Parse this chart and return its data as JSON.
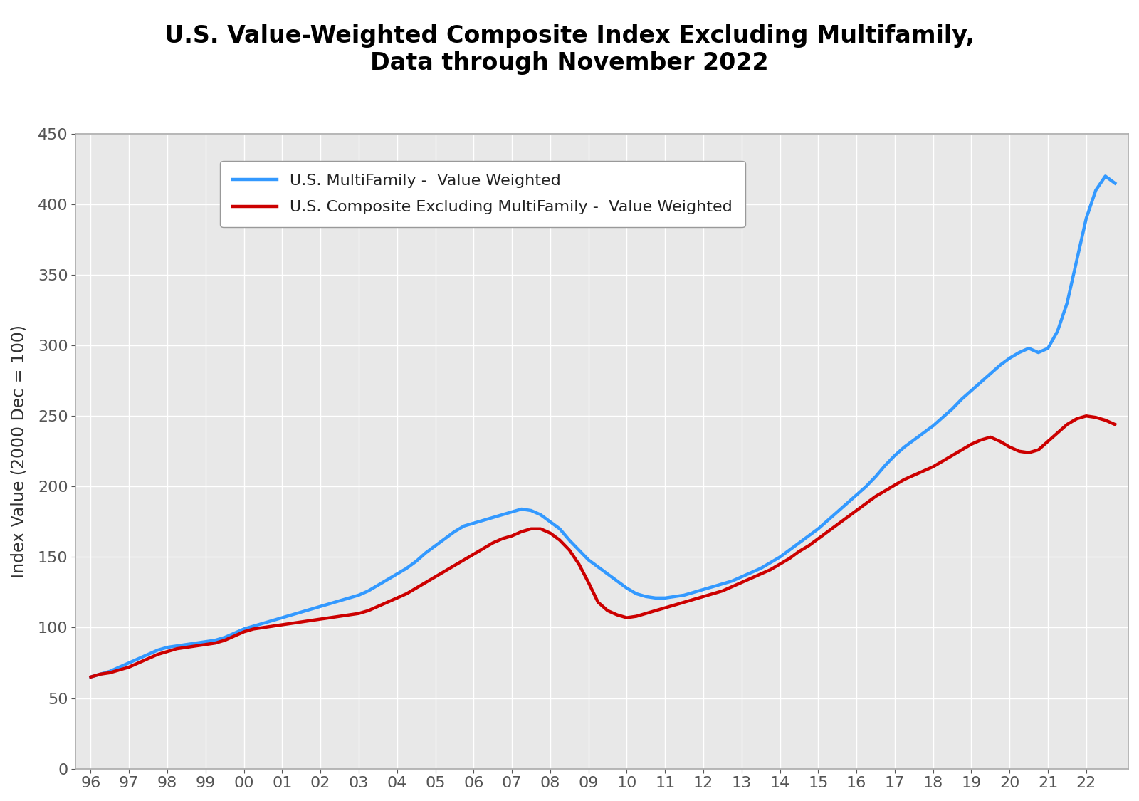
{
  "title": "U.S. Value-Weighted Composite Index Excluding Multifamily,\nData through November 2022",
  "ylabel": "Index Value (2000 Dec = 100)",
  "line1_label": "U.S. MultiFamily -  Value Weighted",
  "line2_label": "U.S. Composite Excluding MultiFamily -  Value Weighted",
  "line1_color": "#3399ff",
  "line2_color": "#cc0000",
  "plot_bg_color": "#e8e8e8",
  "fig_bg_color": "#ffffff",
  "ylim": [
    0,
    450
  ],
  "yticks": [
    0,
    50,
    100,
    150,
    200,
    250,
    300,
    350,
    400,
    450
  ],
  "xlim_left": 1995.6,
  "xlim_right": 2023.1,
  "xtick_labels": [
    "96",
    "97",
    "98",
    "99",
    "00",
    "01",
    "02",
    "03",
    "04",
    "05",
    "06",
    "07",
    "08",
    "09",
    "10",
    "11",
    "12",
    "13",
    "14",
    "15",
    "16",
    "17",
    "18",
    "19",
    "20",
    "21",
    "22"
  ],
  "title_fontsize": 24,
  "axis_label_fontsize": 17,
  "tick_fontsize": 16,
  "legend_fontsize": 16,
  "linewidth": 3.2,
  "multifamily_x": [
    1996.0,
    1996.25,
    1996.5,
    1996.75,
    1997.0,
    1997.25,
    1997.5,
    1997.75,
    1998.0,
    1998.25,
    1998.5,
    1998.75,
    1999.0,
    1999.25,
    1999.5,
    1999.75,
    2000.0,
    2000.25,
    2000.5,
    2000.75,
    2001.0,
    2001.25,
    2001.5,
    2001.75,
    2002.0,
    2002.25,
    2002.5,
    2002.75,
    2003.0,
    2003.25,
    2003.5,
    2003.75,
    2004.0,
    2004.25,
    2004.5,
    2004.75,
    2005.0,
    2005.25,
    2005.5,
    2005.75,
    2006.0,
    2006.25,
    2006.5,
    2006.75,
    2007.0,
    2007.25,
    2007.5,
    2007.75,
    2008.0,
    2008.25,
    2008.5,
    2008.75,
    2009.0,
    2009.25,
    2009.5,
    2009.75,
    2010.0,
    2010.25,
    2010.5,
    2010.75,
    2011.0,
    2011.25,
    2011.5,
    2011.75,
    2012.0,
    2012.25,
    2012.5,
    2012.75,
    2013.0,
    2013.25,
    2013.5,
    2013.75,
    2014.0,
    2014.25,
    2014.5,
    2014.75,
    2015.0,
    2015.25,
    2015.5,
    2015.75,
    2016.0,
    2016.25,
    2016.5,
    2016.75,
    2017.0,
    2017.25,
    2017.5,
    2017.75,
    2018.0,
    2018.25,
    2018.5,
    2018.75,
    2019.0,
    2019.25,
    2019.5,
    2019.75,
    2020.0,
    2020.25,
    2020.5,
    2020.75,
    2021.0,
    2021.25,
    2021.5,
    2021.75,
    2022.0,
    2022.25,
    2022.5,
    2022.75
  ],
  "multifamily_y": [
    65,
    67,
    69,
    72,
    75,
    78,
    81,
    84,
    86,
    87,
    88,
    89,
    90,
    91,
    93,
    96,
    99,
    101,
    103,
    105,
    107,
    109,
    111,
    113,
    115,
    117,
    119,
    121,
    123,
    126,
    130,
    134,
    138,
    142,
    147,
    153,
    158,
    163,
    168,
    172,
    174,
    176,
    178,
    180,
    182,
    184,
    183,
    180,
    175,
    170,
    162,
    155,
    148,
    143,
    138,
    133,
    128,
    124,
    122,
    121,
    121,
    122,
    123,
    125,
    127,
    129,
    131,
    133,
    136,
    139,
    142,
    146,
    150,
    155,
    160,
    165,
    170,
    176,
    182,
    188,
    194,
    200,
    207,
    215,
    222,
    228,
    233,
    238,
    243,
    249,
    255,
    262,
    268,
    274,
    280,
    286,
    291,
    295,
    298,
    295,
    298,
    310,
    330,
    360,
    390,
    410,
    420,
    415
  ],
  "composite_x": [
    1996.0,
    1996.25,
    1996.5,
    1996.75,
    1997.0,
    1997.25,
    1997.5,
    1997.75,
    1998.0,
    1998.25,
    1998.5,
    1998.75,
    1999.0,
    1999.25,
    1999.5,
    1999.75,
    2000.0,
    2000.25,
    2000.5,
    2000.75,
    2001.0,
    2001.25,
    2001.5,
    2001.75,
    2002.0,
    2002.25,
    2002.5,
    2002.75,
    2003.0,
    2003.25,
    2003.5,
    2003.75,
    2004.0,
    2004.25,
    2004.5,
    2004.75,
    2005.0,
    2005.25,
    2005.5,
    2005.75,
    2006.0,
    2006.25,
    2006.5,
    2006.75,
    2007.0,
    2007.25,
    2007.5,
    2007.75,
    2008.0,
    2008.25,
    2008.5,
    2008.75,
    2009.0,
    2009.25,
    2009.5,
    2009.75,
    2010.0,
    2010.25,
    2010.5,
    2010.75,
    2011.0,
    2011.25,
    2011.5,
    2011.75,
    2012.0,
    2012.25,
    2012.5,
    2012.75,
    2013.0,
    2013.25,
    2013.5,
    2013.75,
    2014.0,
    2014.25,
    2014.5,
    2014.75,
    2015.0,
    2015.25,
    2015.5,
    2015.75,
    2016.0,
    2016.25,
    2016.5,
    2016.75,
    2017.0,
    2017.25,
    2017.5,
    2017.75,
    2018.0,
    2018.25,
    2018.5,
    2018.75,
    2019.0,
    2019.25,
    2019.5,
    2019.75,
    2020.0,
    2020.25,
    2020.5,
    2020.75,
    2021.0,
    2021.25,
    2021.5,
    2021.75,
    2022.0,
    2022.25,
    2022.5,
    2022.75
  ],
  "composite_y": [
    65,
    67,
    68,
    70,
    72,
    75,
    78,
    81,
    83,
    85,
    86,
    87,
    88,
    89,
    91,
    94,
    97,
    99,
    100,
    101,
    102,
    103,
    104,
    105,
    106,
    107,
    108,
    109,
    110,
    112,
    115,
    118,
    121,
    124,
    128,
    132,
    136,
    140,
    144,
    148,
    152,
    156,
    160,
    163,
    165,
    168,
    170,
    170,
    167,
    162,
    155,
    145,
    132,
    118,
    112,
    109,
    107,
    108,
    110,
    112,
    114,
    116,
    118,
    120,
    122,
    124,
    126,
    129,
    132,
    135,
    138,
    141,
    145,
    149,
    154,
    158,
    163,
    168,
    173,
    178,
    183,
    188,
    193,
    197,
    201,
    205,
    208,
    211,
    214,
    218,
    222,
    226,
    230,
    233,
    235,
    232,
    228,
    225,
    224,
    226,
    232,
    238,
    244,
    248,
    250,
    249,
    247,
    244
  ]
}
